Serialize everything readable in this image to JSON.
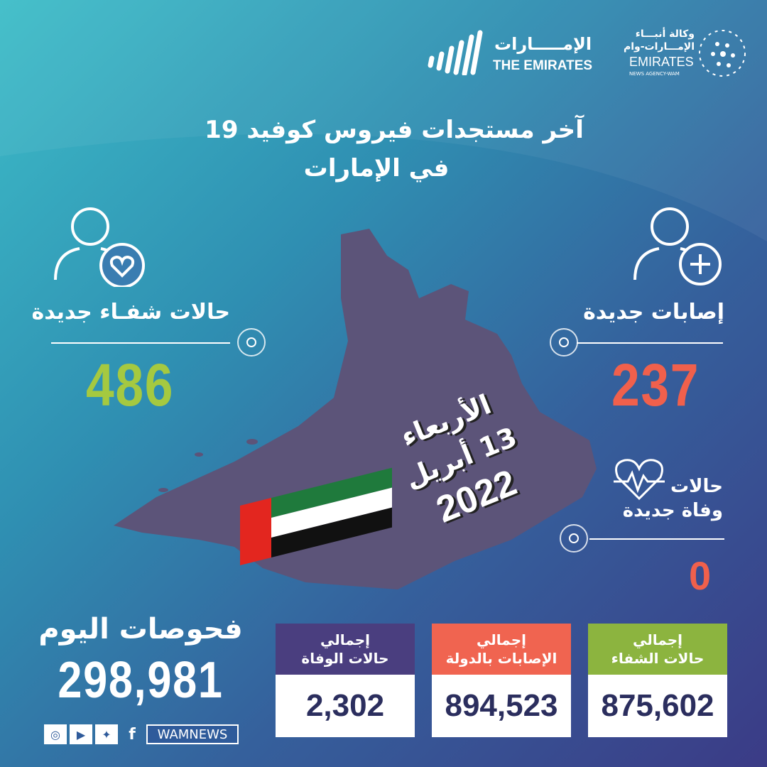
{
  "logos": {
    "emirates": {
      "arabic": "الإمـــــارات",
      "english": "THE EMIRATES"
    },
    "wam": {
      "arabic_line1": "وكالة أنبـــاء",
      "arabic_line2": "الإمـــارات-وام",
      "english": "EMIRATES",
      "sub": "NEWS AGENCY-WAM"
    }
  },
  "title": {
    "line1": "آخر مستجدات فيروس كوفيد 19",
    "line2": "في الإمارات"
  },
  "date": {
    "day": "الأربعاء",
    "date": "13 أبريل",
    "year": "2022"
  },
  "recoveries": {
    "label": "حالات شفـاء جديدة",
    "value": "486",
    "icon": "person-heart-icon",
    "color": "#a5c940"
  },
  "new_cases": {
    "label": "إصابات جديدة",
    "value": "237",
    "icon": "person-plus-icon",
    "color": "#f0604c"
  },
  "deaths": {
    "label_line1": "حالات",
    "label_line2": "وفاة جديدة",
    "value": "0",
    "icon": "heartbeat-icon"
  },
  "tests": {
    "label": "فحوصات اليوم",
    "value": "298,981"
  },
  "totals": [
    {
      "label_line1": "إجمالي",
      "label_line2": "حالات الشفاء",
      "value": "875,602",
      "color": "#8cb43f"
    },
    {
      "label_line1": "إجمالي",
      "label_line2": "الإصابات بالدولة",
      "value": "894,523",
      "color": "#f06450"
    },
    {
      "label_line1": "إجمالي",
      "label_line2": "حالات الوفاة",
      "value": "2,302",
      "color": "#4a3e7f"
    }
  ],
  "social": {
    "handle": "WAMNEWS",
    "icons": [
      "instagram-icon",
      "youtube-icon",
      "twitter-icon",
      "facebook-icon"
    ]
  },
  "colors": {
    "map": "#5c5479",
    "value_dark": "#2b2e5e"
  }
}
